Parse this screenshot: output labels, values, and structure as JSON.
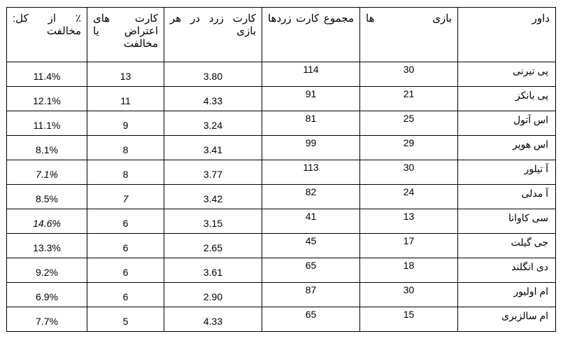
{
  "table": {
    "columns": [
      {
        "key": "referee",
        "label": "داور",
        "header_class": "single-word"
      },
      {
        "key": "games",
        "label": "بازی ها"
      },
      {
        "key": "total_yellow",
        "label": "مجموع کارت زردها"
      },
      {
        "key": "yellow_per_match",
        "label": "کارت زرد در هر بازی"
      },
      {
        "key": "dissent_cards",
        "label": "کارت های اعتراض یا مخالفت"
      },
      {
        "key": "pct_dissent",
        "label": "٪ از کل: مخالفت"
      }
    ],
    "rows": [
      {
        "referee": "پی تیرنی",
        "games": "30",
        "total_yellow": "114",
        "yellow_per_match": "3.80",
        "dissent_cards": "13",
        "pct_dissent": "11.4%"
      },
      {
        "referee": "پی بانکز",
        "games": "21",
        "total_yellow": "91",
        "yellow_per_match": "4.33",
        "dissent_cards": "11",
        "pct_dissent": "12.1%"
      },
      {
        "referee": "اس آتول",
        "games": "25",
        "total_yellow": "81",
        "yellow_per_match": "3.24",
        "dissent_cards": "9",
        "pct_dissent": "11.1%"
      },
      {
        "referee": "اس هوپر",
        "games": "29",
        "total_yellow": "99",
        "yellow_per_match": "3.41",
        "dissent_cards": "8",
        "pct_dissent": "8.1%"
      },
      {
        "referee": "آ تیلور",
        "games": "30",
        "total_yellow": "113",
        "yellow_per_match": "3.77",
        "dissent_cards": "8",
        "pct_dissent": "7.1%",
        "pct_italic": true
      },
      {
        "referee": "آ مدلی",
        "games": "24",
        "total_yellow": "82",
        "yellow_per_match": "3.42",
        "dissent_cards": "7",
        "pct_dissent": "8.5%",
        "dissent_italic": true
      },
      {
        "referee": "سی کاوانا",
        "games": "13",
        "total_yellow": "41",
        "yellow_per_match": "3.15",
        "dissent_cards": "6",
        "pct_dissent": "14.6%",
        "pct_italic": true
      },
      {
        "referee": "جی گیلت",
        "games": "17",
        "total_yellow": "45",
        "yellow_per_match": "2.65",
        "dissent_cards": "6",
        "pct_dissent": "13.3%"
      },
      {
        "referee": "دی انگلند",
        "games": "18",
        "total_yellow": "65",
        "yellow_per_match": "3.61",
        "dissent_cards": "6",
        "pct_dissent": "9.2%"
      },
      {
        "referee": "ام اولیور",
        "games": "30",
        "total_yellow": "87",
        "yellow_per_match": "2.90",
        "dissent_cards": "6",
        "pct_dissent": "6.9%"
      },
      {
        "referee": "ام سالزبری",
        "games": "15",
        "total_yellow": "65",
        "yellow_per_match": "4.33",
        "dissent_cards": "5",
        "pct_dissent": "7.7%"
      }
    ],
    "style": {
      "border_color": "#000000",
      "background_color": "#ffffff",
      "header_fontsize": 15,
      "cell_fontsize": 14,
      "font_family": "Tahoma, Arial, sans-serif"
    }
  }
}
